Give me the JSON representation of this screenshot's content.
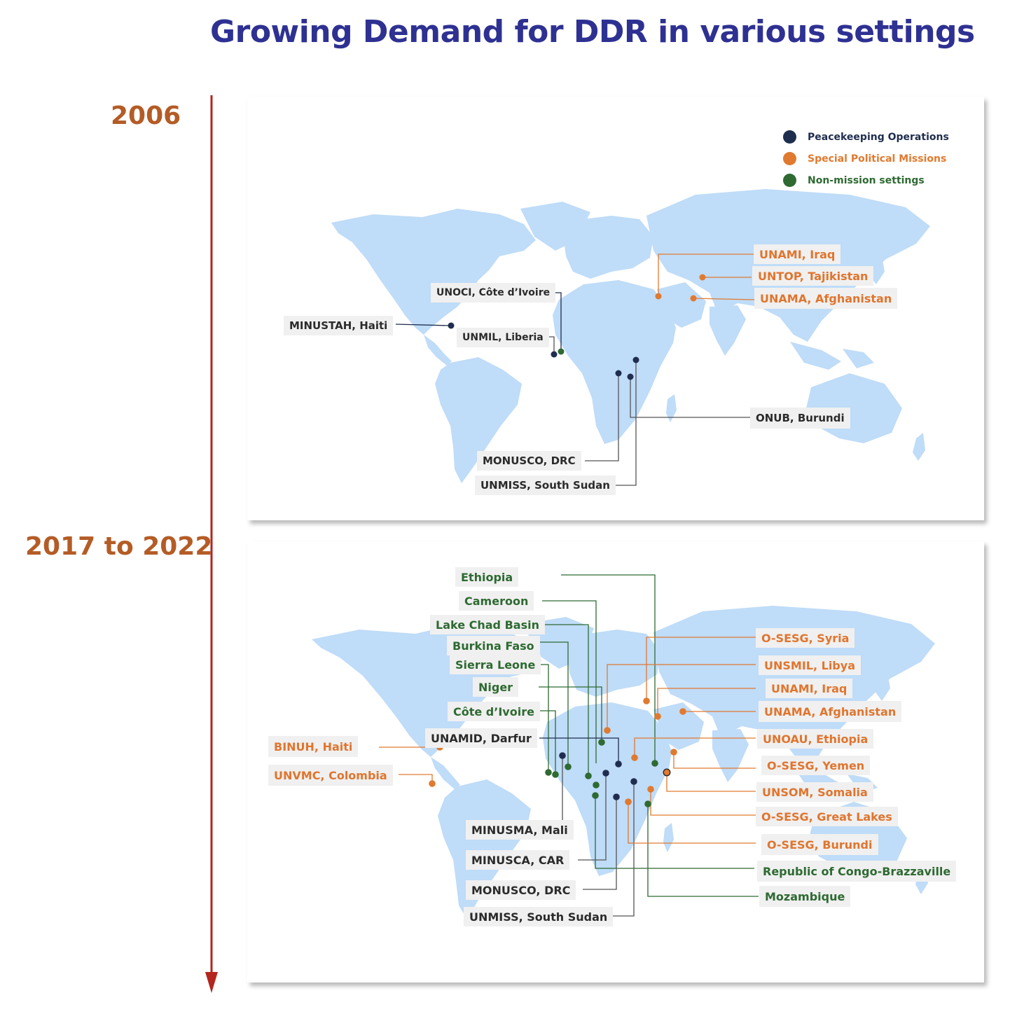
{
  "title": "Growing Demand for DDR in various settings",
  "colors": {
    "title": "#2e3192",
    "year": "#b45c26",
    "timeline": "#b3261e",
    "land": "#bfdcf8",
    "peacekeeping": "#1f2d4e",
    "special_political": "#e07a30",
    "non_mission": "#2e6a32"
  },
  "timeline": {
    "year1": "2006",
    "year2": "2017 to 2022"
  },
  "legend": {
    "peacekeeping": "Peacekeeping Operations",
    "special_political": "Special Political Missions",
    "non_mission": "Non-mission settings"
  },
  "map2006": {
    "labels": [
      {
        "text": "UNAMI, Iraq",
        "type": "spm"
      },
      {
        "text": "UNTOP, Tajikistan",
        "type": "spm"
      },
      {
        "text": "UNAMA, Afghanistan",
        "type": "spm"
      },
      {
        "text": "UNOCI, Côte d’Ivoire",
        "type": "pko"
      },
      {
        "text": "MINUSTAH, Haiti",
        "type": "pko"
      },
      {
        "text": "UNMIL, Liberia",
        "type": "pko"
      },
      {
        "text": "ONUB, Burundi",
        "type": "pko"
      },
      {
        "text": "MONUSCO, DRC",
        "type": "pko"
      },
      {
        "text": "UNMISS, South Sudan",
        "type": "pko"
      }
    ]
  },
  "map2017": {
    "labels": [
      {
        "text": "Ethiopia",
        "type": "nms"
      },
      {
        "text": "Cameroon",
        "type": "nms"
      },
      {
        "text": "Lake Chad Basin",
        "type": "nms"
      },
      {
        "text": "Burkina Faso",
        "type": "nms"
      },
      {
        "text": "Sierra Leone",
        "type": "nms"
      },
      {
        "text": "Niger",
        "type": "nms"
      },
      {
        "text": "Côte d’Ivoire",
        "type": "nms"
      },
      {
        "text": "UNAMID, Darfur",
        "type": "pko"
      },
      {
        "text": "BINUH, Haiti",
        "type": "spm"
      },
      {
        "text": "UNVMC, Colombia",
        "type": "spm"
      },
      {
        "text": "MINUSMA, Mali",
        "type": "pko"
      },
      {
        "text": "MINUSCA, CAR",
        "type": "pko"
      },
      {
        "text": "MONUSCO, DRC",
        "type": "pko"
      },
      {
        "text": "UNMISS, South Sudan",
        "type": "pko"
      },
      {
        "text": "O-SESG, Syria",
        "type": "spm"
      },
      {
        "text": "UNSMIL, Libya",
        "type": "spm"
      },
      {
        "text": "UNAMI, Iraq",
        "type": "spm"
      },
      {
        "text": "UNAMA, Afghanistan",
        "type": "spm"
      },
      {
        "text": "UNOAU, Ethiopia",
        "type": "spm"
      },
      {
        "text": "O-SESG, Yemen",
        "type": "spm"
      },
      {
        "text": "UNSOM, Somalia",
        "type": "spm"
      },
      {
        "text": "O-SESG, Great Lakes",
        "type": "spm"
      },
      {
        "text": "O-SESG, Burundi",
        "type": "spm"
      },
      {
        "text": "Republic of Congo-Brazzaville",
        "type": "nms"
      },
      {
        "text": "Mozambique",
        "type": "nms"
      }
    ]
  }
}
